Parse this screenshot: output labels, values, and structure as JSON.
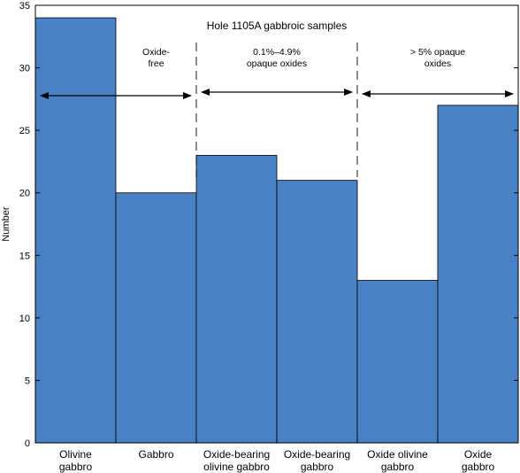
{
  "chart_data": {
    "type": "bar",
    "title": "Hole 1105A gabbroic samples",
    "xlabel": "",
    "ylabel": "Number",
    "ylim": [
      0,
      35
    ],
    "yticks": [
      0,
      5,
      10,
      15,
      20,
      25,
      30,
      35
    ],
    "categories": [
      [
        "Olivine",
        "gabbro"
      ],
      [
        "Gabbro"
      ],
      [
        "Oxide-bearing",
        "olivine gabbro"
      ],
      [
        "Oxide-bearing",
        "gabbro"
      ],
      [
        "Oxide olivine",
        "gabbro"
      ],
      [
        "Oxide",
        "gabbro"
      ]
    ],
    "values": [
      34,
      20,
      23,
      21,
      13,
      27
    ],
    "bar_color": "#4a80c4",
    "groups": [
      {
        "label": [
          "Oxide-",
          "free"
        ],
        "from_category": 0,
        "to_category": 1
      },
      {
        "label": [
          "0.1%–4.9%",
          "opaque oxides"
        ],
        "from_category": 2,
        "to_category": 3
      },
      {
        "label": [
          "> 5% opaque",
          "oxides"
        ],
        "from_category": 4,
        "to_category": 5
      }
    ],
    "grid": false
  }
}
